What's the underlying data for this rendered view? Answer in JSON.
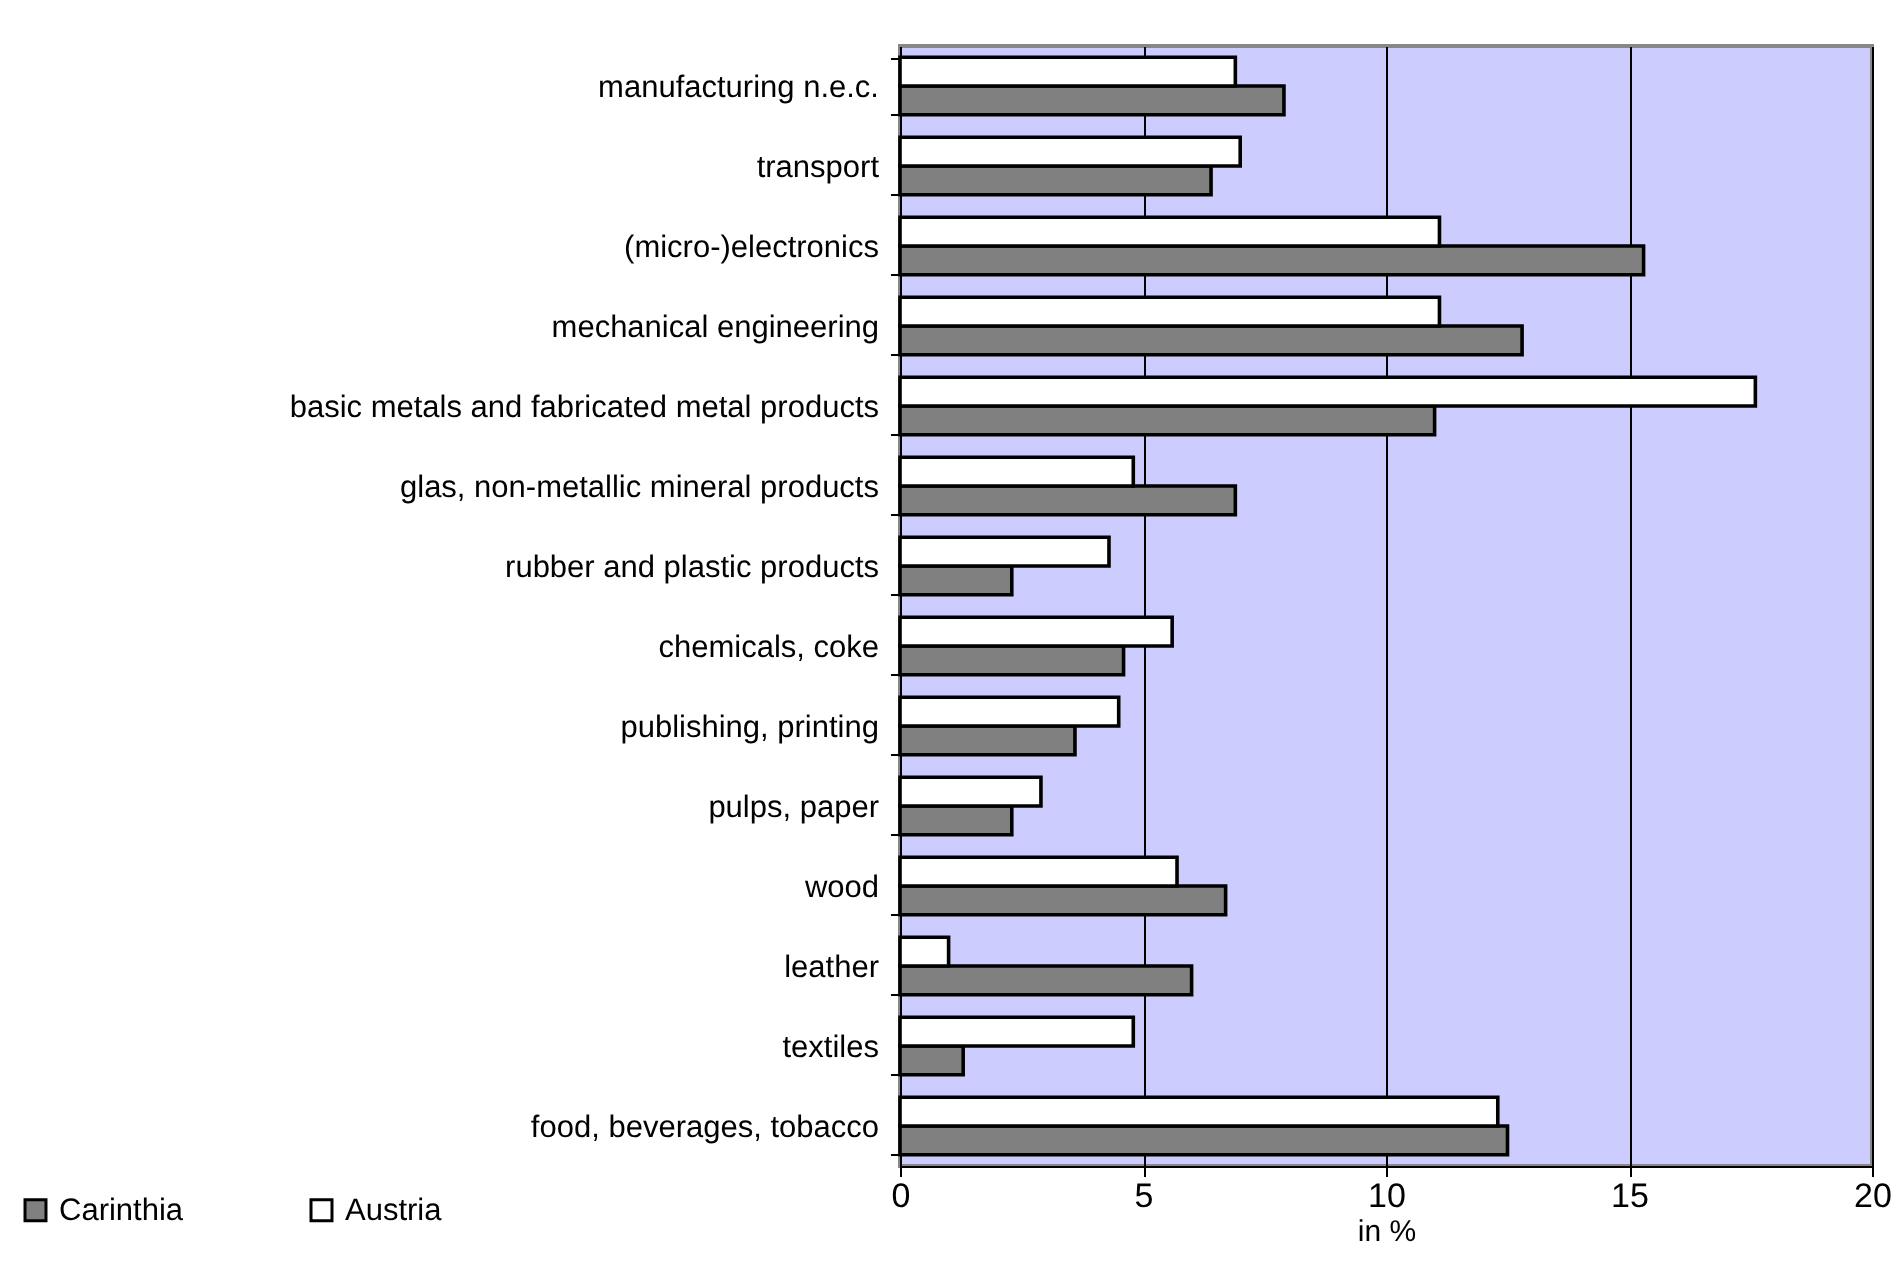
{
  "chart_data": {
    "type": "bar",
    "orientation": "horizontal",
    "xlabel": "in %",
    "categories": [
      "manufacturing n.e.c.",
      "transport",
      "(micro-)electronics",
      "mechanical engineering",
      "basic metals and fabricated metal products",
      "glas, non-metallic mineral products",
      "rubber and plastic products",
      "chemicals, coke",
      "publishing, printing",
      "pulps, paper",
      "wood",
      "leather",
      "textiles",
      "food, beverages, tobacco"
    ],
    "series": [
      {
        "name": "Carinthia",
        "color": "#808080",
        "values": [
          7.9,
          6.4,
          15.3,
          12.8,
          11.0,
          6.9,
          2.3,
          4.6,
          3.6,
          2.3,
          6.7,
          6.0,
          1.3,
          12.5
        ]
      },
      {
        "name": "Austria",
        "color": "#ffffff",
        "values": [
          6.9,
          7.0,
          11.1,
          11.1,
          17.6,
          4.8,
          4.3,
          5.6,
          4.5,
          2.9,
          5.7,
          1.0,
          4.8,
          12.3
        ]
      }
    ],
    "xlim": [
      0,
      20
    ],
    "xticks": [
      0,
      5,
      10,
      15,
      20
    ],
    "grid": "x",
    "legend": "bottom left"
  }
}
